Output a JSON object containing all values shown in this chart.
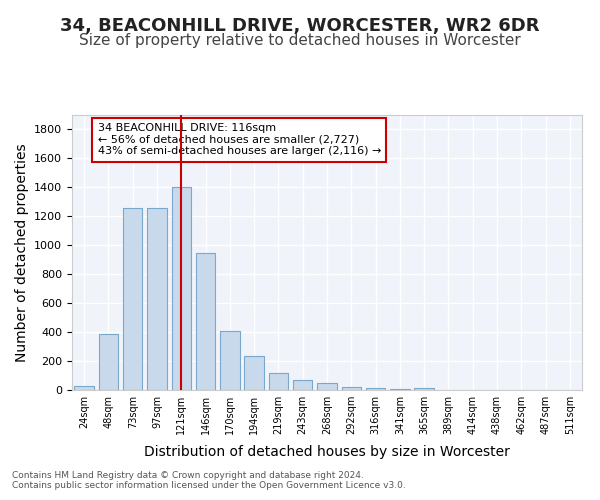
{
  "title1": "34, BEACONHILL DRIVE, WORCESTER, WR2 6DR",
  "title2": "Size of property relative to detached houses in Worcester",
  "xlabel": "Distribution of detached houses by size in Worcester",
  "ylabel": "Number of detached properties",
  "categories": [
    "24sqm",
    "48sqm",
    "73sqm",
    "97sqm",
    "121sqm",
    "146sqm",
    "170sqm",
    "194sqm",
    "219sqm",
    "243sqm",
    "268sqm",
    "292sqm",
    "316sqm",
    "341sqm",
    "365sqm",
    "389sqm",
    "414sqm",
    "438sqm",
    "462sqm",
    "487sqm",
    "511sqm"
  ],
  "values": [
    30,
    390,
    1260,
    1260,
    1400,
    950,
    410,
    235,
    115,
    70,
    45,
    20,
    15,
    10,
    15,
    3,
    2,
    1,
    0,
    0,
    0
  ],
  "bar_color": "#c9d9ec",
  "bar_edge_color": "#7aa8cc",
  "red_line_x": 4,
  "annotation_text": "34 BEACONHILL DRIVE: 116sqm\n← 56% of detached houses are smaller (2,727)\n43% of semi-detached houses are larger (2,116) →",
  "annotation_box_color": "#ffffff",
  "annotation_border_color": "#cc0000",
  "footer_text": "Contains HM Land Registry data © Crown copyright and database right 2024.\nContains public sector information licensed under the Open Government Licence v3.0.",
  "ylim": [
    0,
    1900
  ],
  "background_color": "#f0f4fa",
  "grid_color": "#ffffff",
  "title1_fontsize": 13,
  "title2_fontsize": 11,
  "xlabel_fontsize": 10,
  "ylabel_fontsize": 10
}
